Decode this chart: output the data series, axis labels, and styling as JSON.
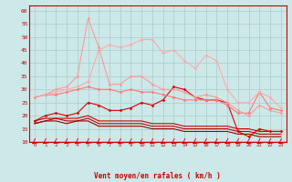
{
  "x": [
    0,
    1,
    2,
    3,
    4,
    5,
    6,
    7,
    8,
    9,
    10,
    11,
    12,
    13,
    14,
    15,
    16,
    17,
    18,
    19,
    20,
    21,
    22,
    23
  ],
  "bg_color": "#cce8e8",
  "grid_color": "#aacccc",
  "xlabel": "Vent moyen/en rafales ( km/h )",
  "xlabel_color": "#cc0000",
  "tick_color": "#cc0000",
  "ylim": [
    10,
    62
  ],
  "yticks": [
    10,
    15,
    20,
    25,
    30,
    35,
    40,
    45,
    50,
    55,
    60
  ],
  "series": [
    {
      "y": [
        18,
        20,
        21,
        20,
        21,
        25,
        24,
        22,
        22,
        23,
        25,
        24,
        26,
        31,
        30,
        27,
        26,
        26,
        25,
        14,
        12,
        15,
        14,
        14
      ],
      "color": "#dd0000",
      "lw": 0.8,
      "marker": "D",
      "ms": 1.5
    },
    {
      "y": [
        18,
        19,
        19,
        19,
        19,
        20,
        18,
        18,
        18,
        18,
        18,
        17,
        17,
        17,
        16,
        16,
        16,
        16,
        16,
        15,
        15,
        14,
        14,
        14
      ],
      "color": "#cc0000",
      "lw": 0.8,
      "marker": null,
      "ms": 0
    },
    {
      "y": [
        17,
        18,
        19,
        18,
        18,
        19,
        17,
        17,
        17,
        17,
        17,
        16,
        16,
        16,
        15,
        15,
        15,
        15,
        15,
        14,
        14,
        13,
        13,
        13
      ],
      "color": "#bb0000",
      "lw": 0.8,
      "marker": null,
      "ms": 0
    },
    {
      "y": [
        17,
        18,
        18,
        17,
        18,
        18,
        16,
        16,
        16,
        16,
        16,
        15,
        15,
        15,
        14,
        14,
        14,
        14,
        14,
        13,
        13,
        12,
        12,
        12
      ],
      "color": "#990000",
      "lw": 0.8,
      "marker": null,
      "ms": 0
    },
    {
      "y": [
        27,
        28,
        28,
        29,
        30,
        31,
        30,
        30,
        29,
        30,
        29,
        29,
        28,
        27,
        26,
        26,
        26,
        26,
        24,
        21,
        21,
        29,
        23,
        22
      ],
      "color": "#ff7777",
      "lw": 0.8,
      "marker": "D",
      "ms": 1.5
    },
    {
      "y": [
        27,
        28,
        29,
        30,
        31,
        33,
        45,
        47,
        46,
        47,
        49,
        49,
        44,
        45,
        41,
        38,
        43,
        41,
        30,
        25,
        25,
        29,
        27,
        23
      ],
      "color": "#ffaaaa",
      "lw": 0.8,
      "marker": "D",
      "ms": 1.5
    },
    {
      "y": [
        27,
        28,
        30,
        31,
        35,
        57,
        46,
        32,
        32,
        35,
        35,
        32,
        30,
        30,
        29,
        27,
        28,
        27,
        25,
        22,
        20,
        24,
        22,
        21
      ],
      "color": "#ff9999",
      "lw": 0.8,
      "marker": "D",
      "ms": 1.5
    }
  ]
}
